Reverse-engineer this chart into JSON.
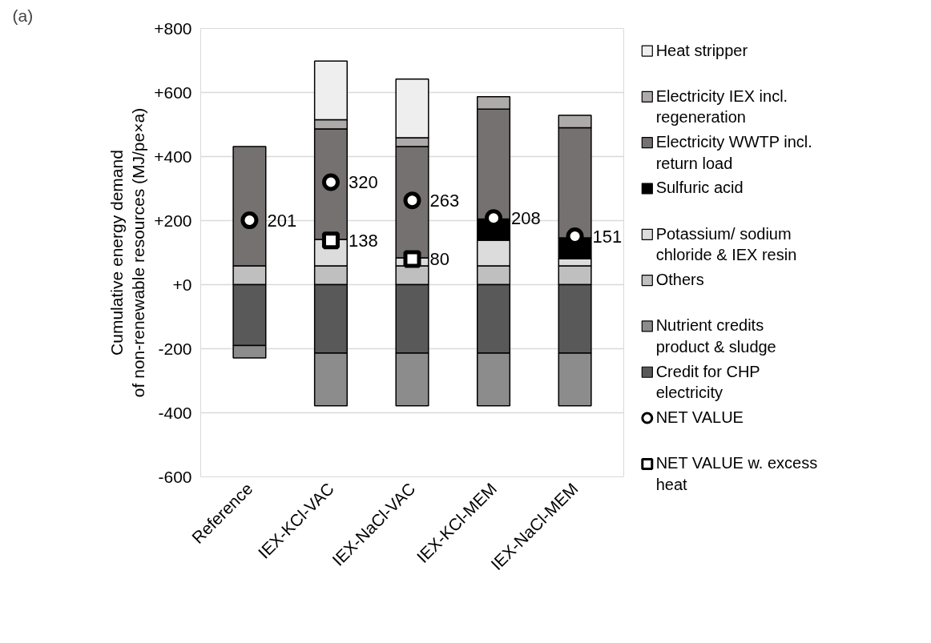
{
  "chart_data": {
    "type": "bar",
    "stacked": true,
    "ylabel": "Cumulative energy demand\nof non-renewable resources (MJ/pe×a)",
    "annotations": [
      "(a)"
    ],
    "categories": [
      "Reference",
      "IEX-KCl-VAC",
      "IEX-NaCl-VAC",
      "IEX-KCl-MEM",
      "IEX-NaCl-MEM"
    ],
    "series": [
      {
        "name": "Others",
        "color": "#bfbfbf",
        "values": [
          59,
          59,
          59,
          59,
          59
        ]
      },
      {
        "name": "Potassium/ sodium chloride & IEX resin",
        "color": "#dcdcdc",
        "values": [
          null,
          82,
          25,
          80,
          22
        ]
      },
      {
        "name": "Sulfuric acid",
        "color": "#000000",
        "values": [
          null,
          null,
          null,
          66,
          65
        ]
      },
      {
        "name": "Electricity WWTP incl. return load",
        "color": "#767171",
        "values": [
          372,
          345,
          347,
          343,
          344
        ]
      },
      {
        "name": "Electricity IEX incl. regeneration",
        "color": "#aeaaaa",
        "values": [
          null,
          29,
          28,
          39,
          39
        ]
      },
      {
        "name": "Heat stripper",
        "color": "#eeeeee",
        "values": [
          null,
          183,
          183,
          null,
          null
        ]
      },
      {
        "name": "Credit for CHP electricity",
        "color": "#595959",
        "values": [
          -190,
          -214,
          -214,
          -214,
          -214
        ]
      },
      {
        "name": "Nutrient credits product & sludge",
        "color": "#8c8c8c",
        "values": [
          -39,
          -164,
          -164,
          -164,
          -164
        ]
      },
      {
        "name": "NET VALUE",
        "type": "scatter",
        "marker": "circle",
        "color": "#000000",
        "values": [
          201,
          320,
          263,
          208,
          151
        ],
        "value_labels": [
          "201",
          "320",
          "263",
          "208",
          "151"
        ]
      },
      {
        "name": "NET VALUE  w. excess heat",
        "type": "scatter",
        "marker": "square",
        "color": "#000000",
        "values": [
          null,
          138,
          80,
          null,
          null
        ],
        "value_labels": [
          null,
          "138",
          "80",
          null,
          null
        ]
      }
    ],
    "legend": "right",
    "grid": "y",
    "ylim": [
      -600,
      800
    ],
    "yticks": [
      {
        "value": 800,
        "label": "+800"
      },
      {
        "value": 600,
        "label": "+600"
      },
      {
        "value": 400,
        "label": "+400"
      },
      {
        "value": 200,
        "label": "+200"
      },
      {
        "value": 0,
        "label": "+0"
      },
      {
        "value": -200,
        "label": "-200"
      },
      {
        "value": -400,
        "label": "-400"
      },
      {
        "value": -600,
        "label": "-600"
      }
    ]
  }
}
